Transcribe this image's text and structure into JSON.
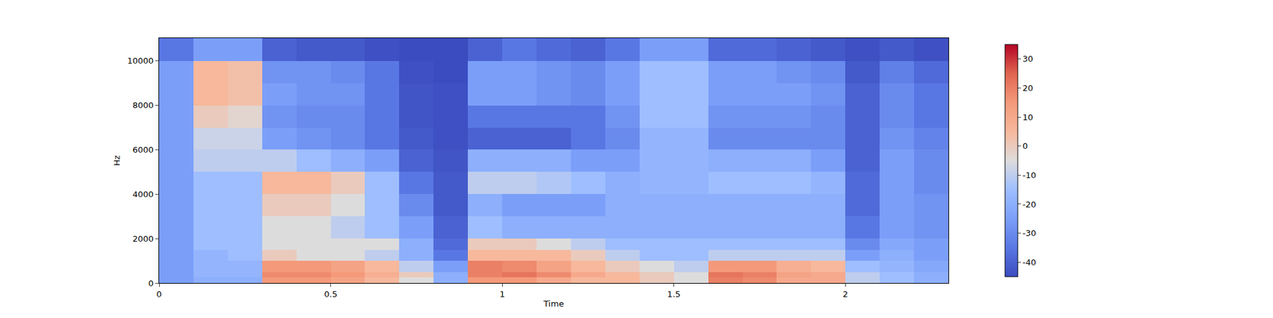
{
  "chart_data": {
    "type": "heatmap",
    "x_label": "Time",
    "y_label": "Hz",
    "xlim": [
      0,
      2.3
    ],
    "ylim": [
      0,
      11025
    ],
    "xticks": [
      0,
      0.5,
      1,
      1.5,
      2
    ],
    "yticks": [
      0,
      2000,
      4000,
      6000,
      8000,
      10000
    ],
    "x_bins": [
      0,
      0.1,
      0.2,
      0.3,
      0.4,
      0.5,
      0.6,
      0.7,
      0.8,
      0.9,
      1.0,
      1.1,
      1.2,
      1.3,
      1.4,
      1.5,
      1.6,
      1.7,
      1.8,
      1.9,
      2.0,
      2.1,
      2.2,
      2.3
    ],
    "y_bins": [
      0,
      250,
      500,
      1000,
      1500,
      2000,
      3000,
      4000,
      5000,
      6000,
      7000,
      8000,
      9000,
      10000,
      11025
    ],
    "z": [
      [
        -25,
        -20,
        -20,
        15,
        15,
        12,
        5,
        -5,
        -20,
        15,
        15,
        10,
        5,
        5,
        0,
        -5,
        20,
        18,
        10,
        10,
        -10,
        -15,
        -20
      ],
      [
        -25,
        -18,
        -18,
        18,
        18,
        15,
        8,
        0,
        -20,
        20,
        22,
        18,
        10,
        5,
        0,
        -5,
        22,
        20,
        12,
        10,
        -10,
        -15,
        -20
      ],
      [
        -25,
        -18,
        -18,
        15,
        15,
        12,
        5,
        -10,
        -25,
        20,
        18,
        12,
        5,
        0,
        -5,
        -10,
        15,
        15,
        8,
        5,
        -15,
        -18,
        -22
      ],
      [
        -25,
        -18,
        -15,
        0,
        -5,
        -5,
        -10,
        -20,
        -35,
        5,
        5,
        5,
        0,
        -10,
        -15,
        -15,
        -10,
        -10,
        -10,
        -10,
        -25,
        -20,
        -25
      ],
      [
        -25,
        -15,
        -15,
        -5,
        -5,
        -5,
        -5,
        -20,
        -38,
        0,
        0,
        -5,
        -10,
        -15,
        -15,
        -15,
        -15,
        -15,
        -15,
        -15,
        -30,
        -22,
        -25
      ],
      [
        -25,
        -15,
        -15,
        -5,
        -5,
        -10,
        -15,
        -25,
        -40,
        -15,
        -20,
        -20,
        -20,
        -20,
        -20,
        -20,
        -20,
        -20,
        -20,
        -20,
        -35,
        -25,
        -28
      ],
      [
        -25,
        -15,
        -15,
        0,
        0,
        -5,
        -15,
        -30,
        -42,
        -20,
        -25,
        -25,
        -25,
        -20,
        -20,
        -20,
        -20,
        -20,
        -20,
        -20,
        -38,
        -25,
        -28
      ],
      [
        -25,
        -15,
        -15,
        5,
        5,
        0,
        -15,
        -35,
        -42,
        -10,
        -10,
        -12,
        -15,
        -20,
        -18,
        -18,
        -15,
        -15,
        -15,
        -18,
        -38,
        -25,
        -30
      ],
      [
        -25,
        -10,
        -10,
        -10,
        -15,
        -20,
        -25,
        -40,
        -43,
        -20,
        -20,
        -20,
        -25,
        -25,
        -18,
        -18,
        -20,
        -20,
        -20,
        -25,
        -40,
        -25,
        -30
      ],
      [
        -25,
        -8,
        -8,
        -25,
        -28,
        -30,
        -35,
        -42,
        -44,
        -40,
        -40,
        -40,
        -35,
        -30,
        -18,
        -18,
        -30,
        -30,
        -30,
        -30,
        -40,
        -28,
        -32
      ],
      [
        -25,
        0,
        -3,
        -28,
        -30,
        -30,
        -35,
        -43,
        -44,
        -35,
        -35,
        -35,
        -35,
        -28,
        -15,
        -15,
        -28,
        -28,
        -28,
        -30,
        -40,
        -30,
        -35
      ],
      [
        -25,
        5,
        3,
        -25,
        -28,
        -28,
        -35,
        -43,
        -44,
        -25,
        -25,
        -28,
        -30,
        -25,
        -15,
        -15,
        -25,
        -25,
        -25,
        -28,
        -40,
        -30,
        -35
      ],
      [
        -25,
        5,
        3,
        -28,
        -28,
        -30,
        -35,
        -44,
        -45,
        -25,
        -25,
        -28,
        -30,
        -25,
        -15,
        -15,
        -25,
        -25,
        -28,
        -30,
        -42,
        -33,
        -38
      ],
      [
        -35,
        -25,
        -25,
        -40,
        -42,
        -42,
        -44,
        -45,
        -45,
        -40,
        -35,
        -38,
        -40,
        -35,
        -25,
        -25,
        -38,
        -38,
        -40,
        -42,
        -44,
        -42,
        -44
      ]
    ],
    "colorbar": {
      "range": [
        -45,
        35
      ],
      "ticks": [
        -40,
        -30,
        -20,
        -10,
        0,
        10,
        20,
        30
      ]
    }
  }
}
